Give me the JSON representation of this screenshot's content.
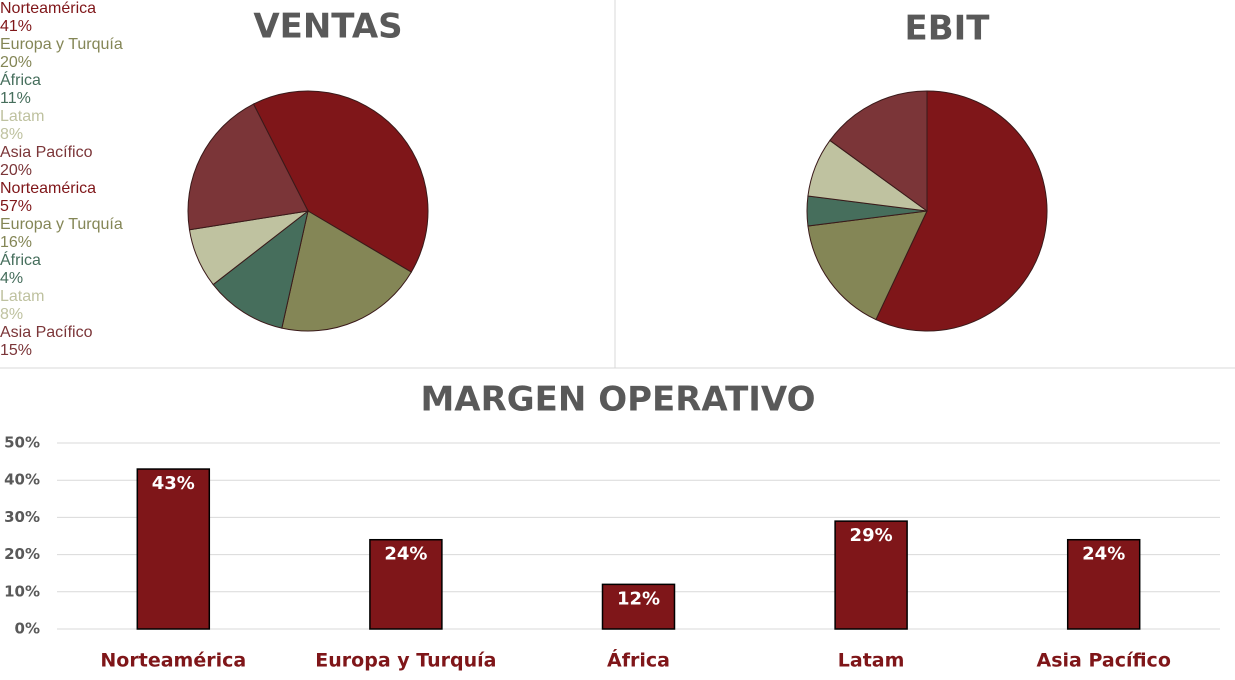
{
  "chart_data": [
    {
      "type": "pie",
      "title": "VENTAS",
      "startangle": -27,
      "categories": [
        "Norteamérica",
        "Europa y Turquía",
        "África",
        "Latam",
        "Asia Pacífico"
      ],
      "values": [
        41,
        20,
        11,
        8,
        20
      ],
      "value_labels": [
        "41%",
        "20%",
        "11%",
        "8%",
        "20%"
      ],
      "colors": [
        "#7f1619",
        "#848656",
        "#466e5c",
        "#bfc2a0",
        "#7b3538"
      ]
    },
    {
      "type": "pie",
      "title": "EBIT",
      "startangle": 0,
      "categories": [
        "Norteamérica",
        "Europa y Turquía",
        "África",
        "Latam",
        "Asia Pacífico"
      ],
      "values": [
        57,
        16,
        4,
        8,
        15
      ],
      "value_labels": [
        "57%",
        "16%",
        "4%",
        "8%",
        "15%"
      ],
      "colors": [
        "#7f1619",
        "#848656",
        "#466e5c",
        "#bfc2a0",
        "#7b3538"
      ]
    },
    {
      "type": "bar",
      "title": "MARGEN OPERATIVO",
      "categories": [
        "Norteamérica",
        "Europa y Turquía",
        "África",
        "Latam",
        "Asia Pacífico"
      ],
      "values": [
        43,
        24,
        12,
        29,
        24
      ],
      "value_labels": [
        "43%",
        "24%",
        "12%",
        "29%",
        "24%"
      ],
      "color": "#7f1619",
      "ylim": [
        0,
        50
      ],
      "yticks": [
        {
          "value": 0,
          "label": "0%"
        },
        {
          "value": 10,
          "label": "10%"
        },
        {
          "value": 20,
          "label": "20%"
        },
        {
          "value": 30,
          "label": "30%"
        },
        {
          "value": 40,
          "label": "40%"
        },
        {
          "value": 50,
          "label": "50%"
        }
      ],
      "grid": true
    }
  ]
}
